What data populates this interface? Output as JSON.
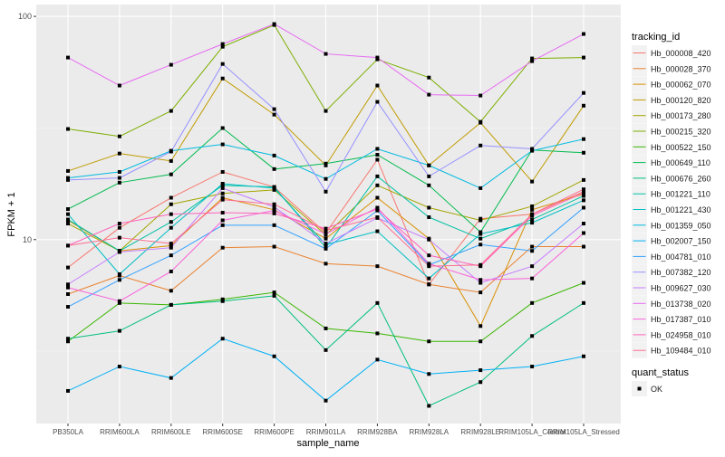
{
  "chart_data": {
    "type": "line",
    "xlabel": "sample_name",
    "ylabel": "FPKM + 1",
    "y_scale": "log10",
    "ylim": [
      1.5,
      113
    ],
    "y_ticks": [
      10,
      100
    ],
    "y_tick_labels": [
      "10",
      "100"
    ],
    "grid": true,
    "legend_position": "right",
    "categories": [
      "PB350LA",
      "RRIM600LA",
      "RRIM600LE",
      "RRIM600SE",
      "RRIM600PE",
      "RRIM901LA",
      "RRIM928BA",
      "RRIM928LA",
      "RRIM928LE",
      "RRIM105LA_Control",
      "RRIM105LA_Stressed"
    ],
    "color_legend_title": "tracking_id",
    "shape_legend_title": "quant_status",
    "shape_legend_items": [
      "OK"
    ],
    "series": [
      {
        "name": "Hb_000008_420",
        "color": "#F8766D",
        "values": [
          7.5,
          11.3,
          15.4,
          20.1,
          17.2,
          10.7,
          22.8,
          6.3,
          12.4,
          13.0,
          16.4
        ]
      },
      {
        "name": "Hb_000028_370",
        "color": "#EA8331",
        "values": [
          5.7,
          6.9,
          5.9,
          9.2,
          9.3,
          7.8,
          7.6,
          6.3,
          5.8,
          9.3,
          9.3
        ]
      },
      {
        "name": "Hb_000062_070",
        "color": "#D89000",
        "values": [
          12.2,
          8.9,
          9.4,
          15.4,
          13.6,
          10.1,
          15.4,
          10.1,
          4.1,
          13.6,
          16.0
        ]
      },
      {
        "name": "Hb_000120_820",
        "color": "#C09B00",
        "values": [
          20.3,
          24.3,
          22.5,
          52.7,
          36.3,
          21.5,
          49.0,
          21.5,
          33.4,
          18.2,
          39.8
        ]
      },
      {
        "name": "Hb_000173_280",
        "color": "#A3A500",
        "values": [
          11.8,
          8.9,
          14.4,
          16.1,
          16.7,
          10.5,
          17.5,
          13.9,
          12.2,
          14.1,
          18.5
        ]
      },
      {
        "name": "Hb_000215_320",
        "color": "#7CAE00",
        "values": [
          31.3,
          29.0,
          37.7,
          73.1,
          91.5,
          37.7,
          64.2,
          53.2,
          33.7,
          64.8,
          65.4
        ]
      },
      {
        "name": "Hb_000522_150",
        "color": "#39B600",
        "values": [
          3.5,
          5.2,
          5.1,
          5.4,
          5.8,
          4.0,
          3.8,
          3.5,
          3.5,
          5.2,
          6.4
        ]
      },
      {
        "name": "Hb_000649_110",
        "color": "#00BB4E",
        "values": [
          13.7,
          18.0,
          19.6,
          31.6,
          20.7,
          21.9,
          24.0,
          17.5,
          10.8,
          25.2,
          24.5
        ]
      },
      {
        "name": "Hb_000676_260",
        "color": "#00BF7D",
        "values": [
          3.6,
          3.9,
          5.1,
          5.3,
          5.6,
          3.2,
          5.2,
          1.8,
          2.3,
          3.7,
          5.2
        ]
      },
      {
        "name": "Hb_001221_110",
        "color": "#00C1A3",
        "values": [
          12.3,
          8.9,
          12.0,
          17.5,
          17.2,
          9.2,
          19.2,
          12.6,
          10.1,
          12.3,
          15.7
        ]
      },
      {
        "name": "Hb_001221_430",
        "color": "#00BFC4",
        "values": [
          13.0,
          7.0,
          11.3,
          17.8,
          17.0,
          9.5,
          10.9,
          6.7,
          10.6,
          11.9,
          15.0
        ]
      },
      {
        "name": "Hb_001359_050",
        "color": "#00BAE0",
        "values": [
          18.9,
          20.1,
          25.0,
          26.7,
          23.8,
          18.7,
          25.5,
          21.5,
          17.0,
          25.0,
          28.2
        ]
      },
      {
        "name": "Hb_002007_150",
        "color": "#00B0F6",
        "values": [
          2.1,
          2.7,
          2.4,
          3.6,
          3.0,
          1.9,
          2.9,
          2.5,
          2.6,
          2.7,
          3.0
        ]
      },
      {
        "name": "Hb_004781_010",
        "color": "#35A2FF",
        "values": [
          5.0,
          6.6,
          8.5,
          11.6,
          11.6,
          9.1,
          13.5,
          7.7,
          9.5,
          8.9,
          13.9
        ]
      },
      {
        "name": "Hb_007382_120",
        "color": "#9590FF",
        "values": [
          18.5,
          18.9,
          24.8,
          61.2,
          38.4,
          16.4,
          41.4,
          19.2,
          26.4,
          25.5,
          45.4
        ]
      },
      {
        "name": "Hb_009627_030",
        "color": "#C77CFF",
        "values": [
          6.3,
          8.8,
          9.2,
          17.0,
          14.0,
          9.6,
          12.5,
          10.0,
          6.4,
          7.6,
          11.8
        ]
      },
      {
        "name": "Hb_013738_020",
        "color": "#E76BF3",
        "values": [
          65.4,
          49.0,
          60.7,
          75.2,
          92.4,
          67.9,
          65.4,
          44.6,
          44.2,
          63.0,
          83.4
        ]
      },
      {
        "name": "Hb_017387_010",
        "color": "#FA62DB",
        "values": [
          6.1,
          5.3,
          7.2,
          12.2,
          13.5,
          10.6,
          13.9,
          7.8,
          6.6,
          6.7,
          10.7
        ]
      },
      {
        "name": "Hb_024958_010",
        "color": "#FF62BC",
        "values": [
          9.4,
          11.8,
          13.0,
          13.2,
          13.1,
          11.2,
          13.7,
          8.5,
          7.6,
          12.8,
          16.2
        ]
      },
      {
        "name": "Hb_109484_010",
        "color": "#FF6C91",
        "values": [
          9.4,
          10.2,
          9.6,
          15.1,
          14.4,
          11.0,
          12.6,
          7.6,
          7.7,
          13.0,
          16.8
        ]
      }
    ]
  }
}
